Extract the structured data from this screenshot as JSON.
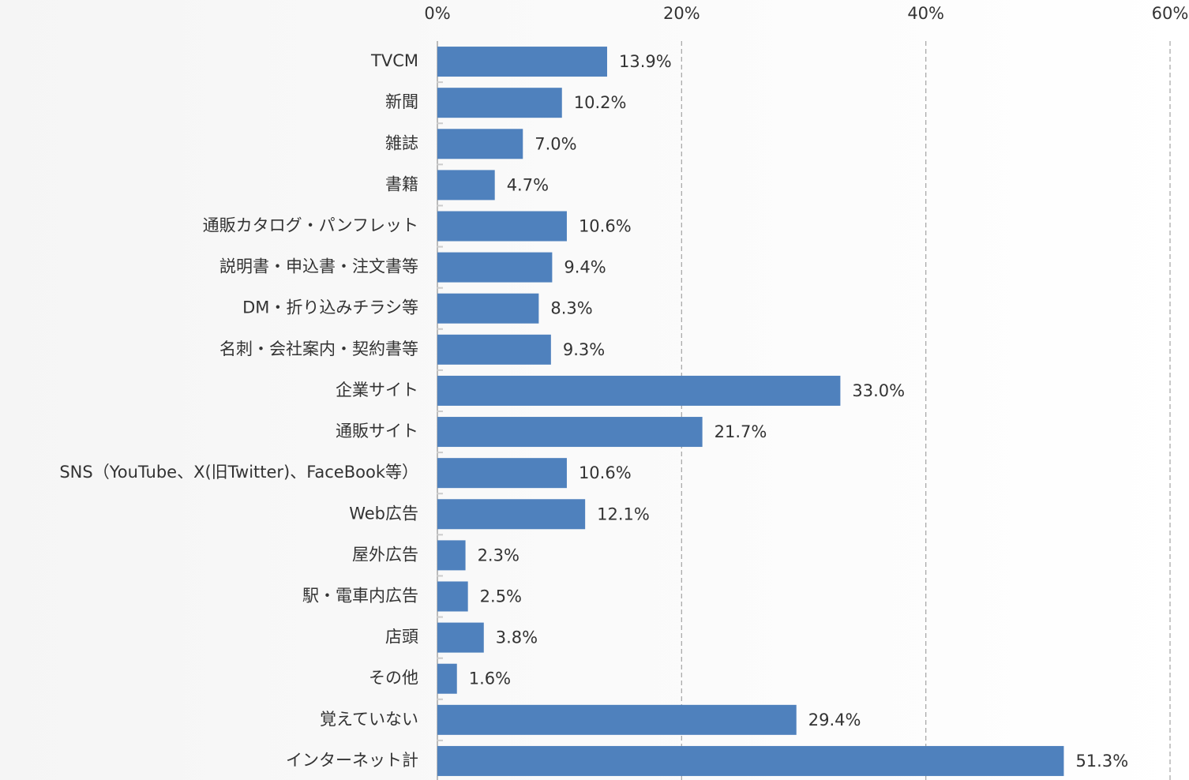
{
  "chart_data": {
    "type": "barh",
    "categories": [
      "TVCM",
      "新聞",
      "雑誌",
      "書籍",
      "通販カタログ・パンフレット",
      "説明書・申込書・注文書等",
      "DM・折り込みチラシ等",
      "名刺・会社案内・契約書等",
      "企業サイト",
      "通販サイト",
      "SNS（YouTube、X(旧Twitter)、FaceBook等）",
      "Web広告",
      "屋外広告",
      "駅・電車内広告",
      "店頭",
      "その他",
      "覚えていない",
      "インターネット計"
    ],
    "values": [
      13.9,
      10.2,
      7.0,
      4.7,
      10.6,
      9.4,
      8.3,
      9.3,
      33.0,
      21.7,
      10.6,
      12.1,
      2.3,
      2.5,
      3.8,
      1.6,
      29.4,
      51.3
    ],
    "value_labels": [
      "13.9%",
      "10.2%",
      "7.0%",
      "4.7%",
      "10.6%",
      "9.4%",
      "8.3%",
      "9.3%",
      "33.0%",
      "21.7%",
      "10.6%",
      "12.1%",
      "2.3%",
      "2.5%",
      "3.8%",
      "1.6%",
      "29.4%",
      "51.3%"
    ],
    "color": "#4f81bd",
    "xlim": [
      0,
      60
    ],
    "xticks": [
      {
        "value": 0,
        "label": "0%"
      },
      {
        "value": 20,
        "label": "20%"
      },
      {
        "value": 40,
        "label": "40%"
      },
      {
        "value": 60,
        "label": "60%"
      }
    ],
    "grid": true
  }
}
